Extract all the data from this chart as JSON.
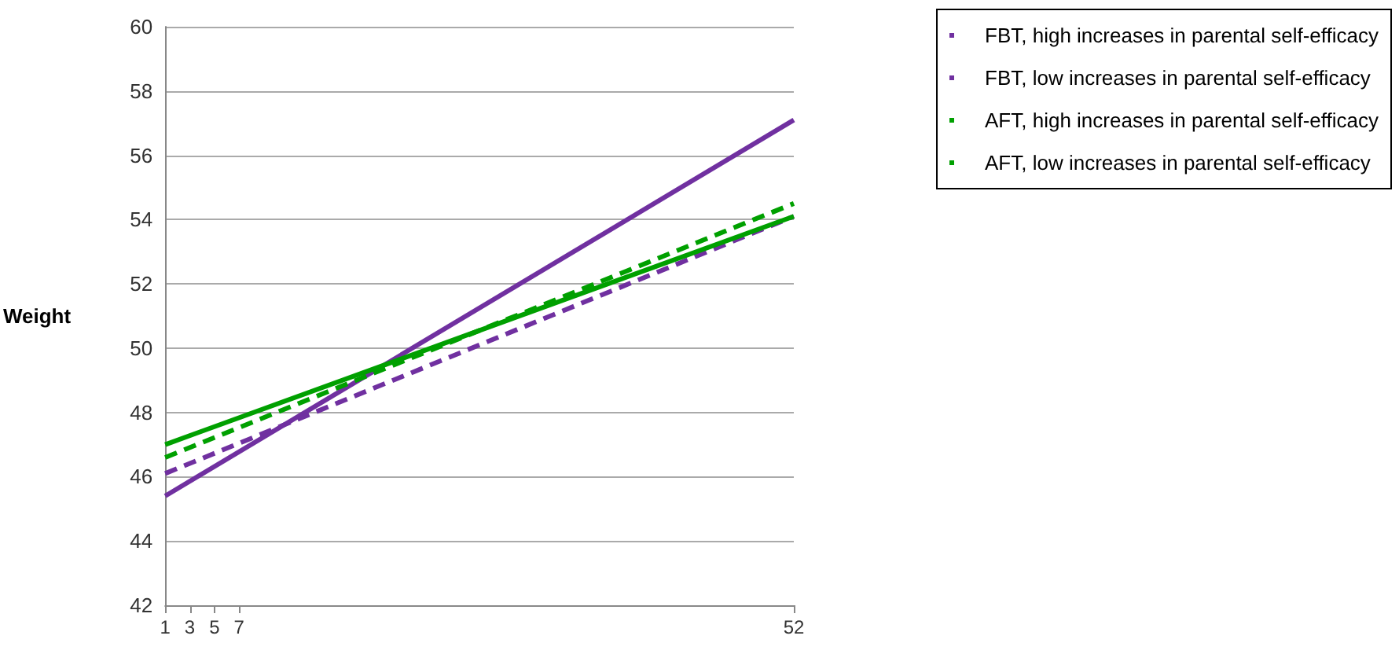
{
  "chart_data": {
    "type": "line",
    "ylabel": "Weight",
    "x": [
      1,
      52
    ],
    "series": [
      {
        "name": "FBT, high increases in parental self-efficacy",
        "color": "#7030a0",
        "line_style": "solid",
        "values": [
          45.4,
          57.1
        ]
      },
      {
        "name": "FBT, low increases in parental self-efficacy",
        "color": "#7030a0",
        "line_style": "dashed",
        "values": [
          46.1,
          54.1
        ]
      },
      {
        "name": "AFT, high increases in parental self-efficacy",
        "color": "#00a000",
        "line_style": "solid",
        "values": [
          47.0,
          54.1
        ]
      },
      {
        "name": "AFT, low increases in parental self-efficacy",
        "color": "#00a000",
        "line_style": "dashed",
        "values": [
          46.6,
          54.5
        ]
      }
    ],
    "xlim": [
      1,
      52
    ],
    "xticks": [
      1,
      3,
      5,
      7,
      52
    ],
    "ylim": [
      42,
      60
    ],
    "yticks": [
      42,
      44,
      46,
      48,
      50,
      52,
      54,
      56,
      58,
      60
    ],
    "grid": "y",
    "legend": "top right",
    "marker": "none"
  }
}
